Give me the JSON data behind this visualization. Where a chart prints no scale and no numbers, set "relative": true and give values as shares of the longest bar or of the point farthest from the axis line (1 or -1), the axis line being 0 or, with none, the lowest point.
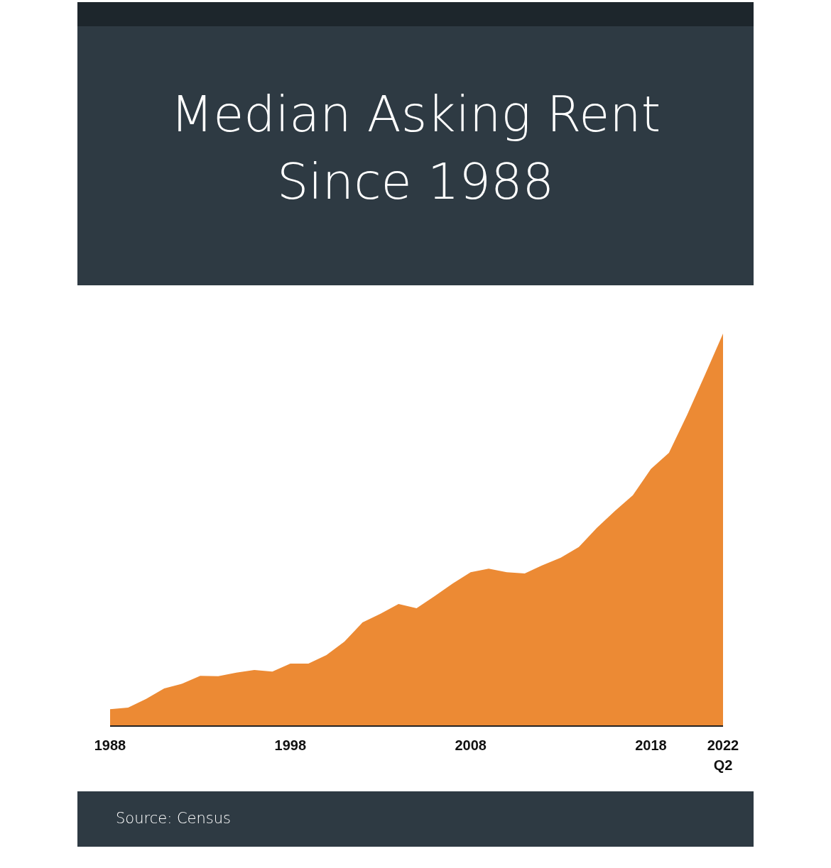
{
  "chart_data": {
    "type": "area",
    "title": "Median Asking Rent Since 1988",
    "annotations": [
      "Source: Census"
    ],
    "relative": true,
    "x": [
      1988,
      1989,
      1990,
      1991,
      1992,
      1993,
      1994,
      1995,
      1996,
      1997,
      1998,
      1999,
      2000,
      2001,
      2002,
      2003,
      2004,
      2005,
      2006,
      2007,
      2008,
      2009,
      2010,
      2011,
      2012,
      2013,
      2014,
      2015,
      2016,
      2017,
      2018,
      2019,
      2020,
      2021,
      2022
    ],
    "series": [
      {
        "color": "#ec8a34",
        "values": [
          0.043,
          0.047,
          0.069,
          0.096,
          0.108,
          0.128,
          0.127,
          0.136,
          0.143,
          0.139,
          0.159,
          0.159,
          0.181,
          0.215,
          0.264,
          0.286,
          0.311,
          0.3,
          0.331,
          0.363,
          0.392,
          0.401,
          0.392,
          0.389,
          0.41,
          0.429,
          0.456,
          0.505,
          0.548,
          0.588,
          0.655,
          0.696,
          0.792,
          0.895,
          1
        ]
      }
    ],
    "xlim": [
      1988,
      2022
    ],
    "xticks": [
      1988,
      1998,
      2008,
      2018,
      {
        "value": 2022,
        "label": "2022\nQ2"
      }
    ]
  }
}
